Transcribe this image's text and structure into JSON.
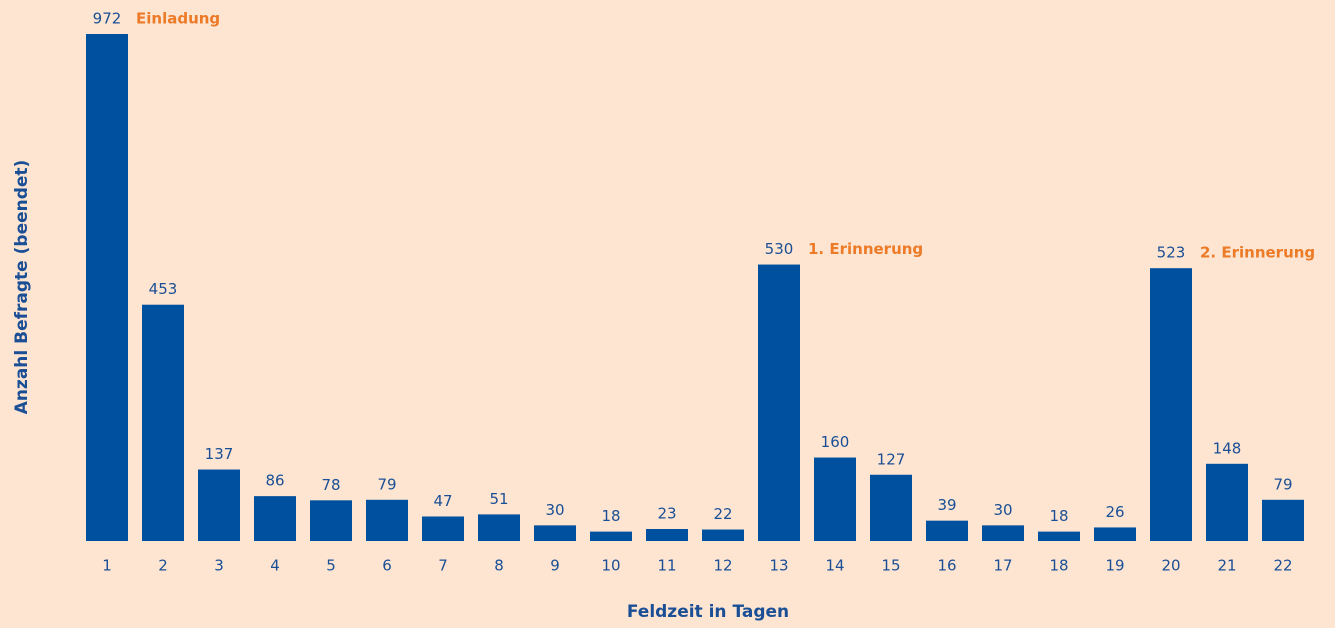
{
  "chart_data": {
    "type": "bar",
    "x_label": "Feldzeit in Tagen",
    "y_label": "Anzahl Befragte (beendet)",
    "categories": [
      "1",
      "2",
      "3",
      "4",
      "5",
      "6",
      "7",
      "8",
      "9",
      "10",
      "11",
      "12",
      "13",
      "14",
      "15",
      "16",
      "17",
      "18",
      "19",
      "20",
      "21",
      "22"
    ],
    "values": [
      972,
      453,
      137,
      86,
      78,
      79,
      47,
      51,
      30,
      18,
      23,
      22,
      530,
      160,
      127,
      39,
      30,
      18,
      26,
      523,
      148,
      79
    ],
    "color": "#0050a0",
    "ylim": [
      0,
      1000
    ],
    "annotations": [
      {
        "text": "Einladung",
        "category": "1",
        "color": "#ec7a26"
      },
      {
        "text": "1. Erinnerung",
        "category": "13",
        "color": "#ec7a26"
      },
      {
        "text": "2. Erinnerung",
        "category": "20",
        "color": "#ec7a26"
      }
    ]
  }
}
